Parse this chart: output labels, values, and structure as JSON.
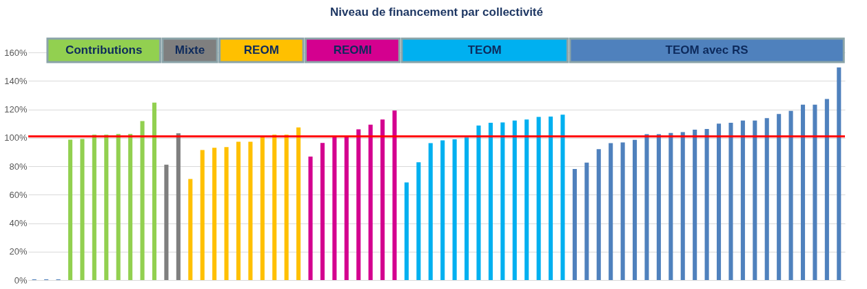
{
  "chart_data": {
    "type": "bar",
    "title": "Niveau de financement par collectivité",
    "categories": [
      null,
      null,
      null,
      null,
      null,
      null,
      null,
      null,
      null,
      null,
      null,
      null,
      null,
      null,
      null,
      null,
      null,
      null,
      null,
      null,
      null,
      null,
      null,
      null,
      null,
      null,
      null,
      null,
      null,
      null,
      null,
      null,
      null,
      null,
      null,
      null,
      null,
      null,
      null,
      null,
      null,
      null,
      null,
      null,
      null,
      null,
      null,
      null,
      null,
      null,
      null,
      null,
      null,
      null,
      null,
      null,
      null,
      null,
      null,
      null,
      null,
      null,
      null,
      null,
      null,
      null,
      null,
      null
    ],
    "series": [
      {
        "color": "#4f81bd",
        "values": [
          0.5,
          0.5,
          0.5,
          null,
          null,
          null,
          null,
          null,
          null,
          null,
          null,
          null,
          null,
          null,
          null,
          null,
          null,
          null,
          null,
          null,
          null,
          null,
          null,
          null,
          null,
          null,
          null,
          null,
          null,
          null,
          null,
          null,
          null,
          null,
          null,
          null,
          null,
          null,
          null,
          null,
          null,
          null,
          null,
          null,
          null,
          null,
          null,
          null,
          null,
          null,
          null,
          null,
          null,
          null,
          null,
          null,
          null,
          null,
          null,
          null,
          null,
          null,
          null,
          null,
          null,
          null,
          null,
          null
        ]
      },
      {
        "name": "Contributions",
        "color": "#92d050",
        "values": [
          null,
          null,
          null,
          98.7,
          99.2,
          102.2,
          102.2,
          102.7,
          102.7,
          111.8,
          124.7,
          null,
          null,
          null,
          null,
          null,
          null,
          null,
          null,
          null,
          null,
          null,
          null,
          null,
          null,
          null,
          null,
          null,
          null,
          null,
          null,
          null,
          null,
          null,
          null,
          null,
          null,
          null,
          null,
          null,
          null,
          null,
          null,
          null,
          null,
          null,
          null,
          null,
          null,
          null,
          null,
          null,
          null,
          null,
          null,
          null,
          null,
          null,
          null,
          null,
          null,
          null,
          null,
          null,
          null,
          null,
          null,
          null
        ]
      },
      {
        "name": "Mixte",
        "color": "#7f7f7f",
        "values": [
          null,
          null,
          null,
          null,
          null,
          null,
          null,
          null,
          null,
          null,
          null,
          81.1,
          103.1,
          null,
          null,
          null,
          null,
          null,
          null,
          null,
          null,
          null,
          null,
          null,
          null,
          null,
          null,
          null,
          null,
          null,
          null,
          null,
          null,
          null,
          null,
          null,
          null,
          null,
          null,
          null,
          null,
          null,
          null,
          null,
          null,
          null,
          null,
          null,
          null,
          null,
          null,
          null,
          null,
          null,
          null,
          null,
          null,
          null,
          null,
          null,
          null,
          null,
          null,
          null,
          null,
          null,
          null,
          null
        ]
      },
      {
        "name": "REOM",
        "color": "#ffc000",
        "values": [
          null,
          null,
          null,
          null,
          null,
          null,
          null,
          null,
          null,
          null,
          null,
          null,
          null,
          71.0,
          91.4,
          93.0,
          93.5,
          97.2,
          97.2,
          100.5,
          102.2,
          102.2,
          107.3,
          null,
          null,
          null,
          null,
          null,
          null,
          null,
          null,
          null,
          null,
          null,
          null,
          null,
          null,
          null,
          null,
          null,
          null,
          null,
          null,
          null,
          null,
          null,
          null,
          null,
          null,
          null,
          null,
          null,
          null,
          null,
          null,
          null,
          null,
          null,
          null,
          null,
          null,
          null,
          null,
          null,
          null,
          null,
          null,
          null
        ]
      },
      {
        "name": "REOMI",
        "color": "#d4008f",
        "values": [
          null,
          null,
          null,
          null,
          null,
          null,
          null,
          null,
          null,
          null,
          null,
          null,
          null,
          null,
          null,
          null,
          null,
          null,
          null,
          null,
          null,
          null,
          null,
          86.8,
          96.4,
          100.5,
          100.5,
          106.0,
          109.2,
          112.9,
          119.2,
          null,
          null,
          null,
          null,
          null,
          null,
          null,
          null,
          null,
          null,
          null,
          null,
          null,
          null,
          null,
          null,
          null,
          null,
          null,
          null,
          null,
          null,
          null,
          null,
          null,
          null,
          null,
          null,
          null,
          null,
          null,
          null,
          null,
          null,
          null,
          null,
          null
        ]
      },
      {
        "name": "TEOM",
        "color": "#00b0f0",
        "values": [
          null,
          null,
          null,
          null,
          null,
          null,
          null,
          null,
          null,
          null,
          null,
          null,
          null,
          null,
          null,
          null,
          null,
          null,
          null,
          null,
          null,
          null,
          null,
          null,
          null,
          null,
          null,
          null,
          null,
          null,
          null,
          68.6,
          82.8,
          96.3,
          98.2,
          98.9,
          100.2,
          108.6,
          110.6,
          110.8,
          112.1,
          112.9,
          114.7,
          114.9,
          116.3,
          null,
          null,
          null,
          null,
          null,
          null,
          null,
          null,
          null,
          null,
          null,
          null,
          null,
          null,
          null,
          null,
          null,
          null,
          null,
          null,
          null,
          null,
          null
        ]
      },
      {
        "name": "TEOM avec RS",
        "color": "#4f81bd",
        "values": [
          null,
          null,
          null,
          null,
          null,
          null,
          null,
          null,
          null,
          null,
          null,
          null,
          null,
          null,
          null,
          null,
          null,
          null,
          null,
          null,
          null,
          null,
          null,
          null,
          null,
          null,
          null,
          null,
          null,
          null,
          null,
          null,
          null,
          null,
          null,
          null,
          null,
          null,
          null,
          null,
          null,
          null,
          null,
          null,
          null,
          78.1,
          82.5,
          92.0,
          96.3,
          96.7,
          98.5,
          102.5,
          102.5,
          103.4,
          104.0,
          105.7,
          106.2,
          109.9,
          110.5,
          112.1,
          112.1,
          113.8,
          116.7,
          118.9,
          123.3,
          123.3,
          127.3,
          149.4
        ]
      }
    ],
    "ylim": [
      0,
      160
    ],
    "yticks": [
      {
        "value": 0,
        "label": "0%"
      },
      {
        "value": 20,
        "label": "20%"
      },
      {
        "value": 40,
        "label": "40%"
      },
      {
        "value": 60,
        "label": "60%"
      },
      {
        "value": 80,
        "label": "80%"
      },
      {
        "value": 100,
        "label": "100%"
      },
      {
        "value": 120,
        "label": "120%"
      },
      {
        "value": 140,
        "label": "140%"
      },
      {
        "value": 160,
        "label": "160%"
      }
    ],
    "ref_lines": [
      {
        "axis": "y",
        "value": 101,
        "color": "#ff0000"
      }
    ],
    "grid": "y",
    "legend": "top",
    "tick_labels": "y"
  }
}
